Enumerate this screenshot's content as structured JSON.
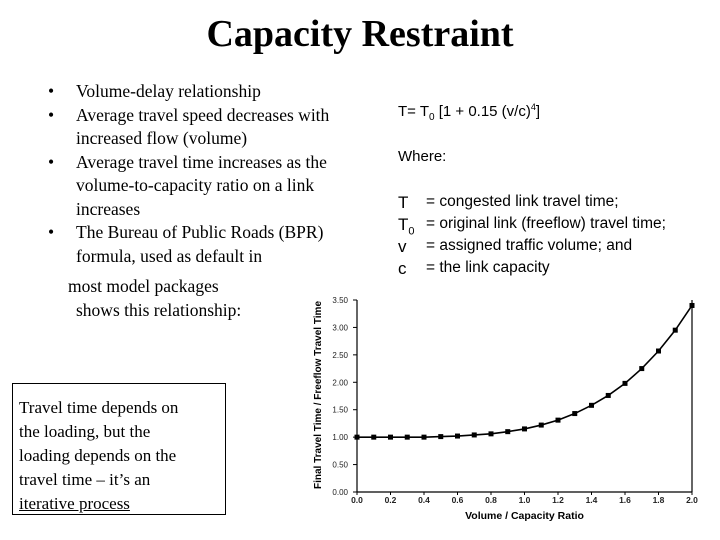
{
  "slide": {
    "title": "Capacity Restraint",
    "bullets": [
      "Volume-delay relationship",
      "Average travel speed decreases with increased flow (volume)",
      "Average travel time increases as the volume-to-capacity ratio on a link increases",
      "The Bureau of Public Roads (BPR) formula, used as default in"
    ],
    "bullet_tail_1": "most model packages",
    "bullet_tail_2": "shows this relationship:",
    "box_line_1": "Travel time depends on",
    "box_line_2": "the loading, but the",
    "box_line_3": "loading depends on the",
    "box_line_4": "travel time – it’s an",
    "box_line_5": "iterative process"
  },
  "formula": {
    "lhs": "T= T",
    "sub": "0",
    "body": " [1 + 0.15 (v/c)",
    "exp": "4",
    "close": "]",
    "where": "Where:",
    "defs": [
      {
        "sym": "T",
        "sub": "",
        "text": "= congested link travel time;"
      },
      {
        "sym": "T",
        "sub": "0",
        "text": "= original link (freeflow) travel time;"
      },
      {
        "sym": "v",
        "sub": "",
        "text": "= assigned traffic volume; and"
      },
      {
        "sym": "c",
        "sub": "",
        "text": "= the link capacity"
      }
    ]
  },
  "chart_data": {
    "type": "line",
    "xlabel": "Volume / Capacity Ratio",
    "ylabel": "Final Travel Time / Freeflow Travel Time",
    "xlim": [
      0,
      2.0
    ],
    "ylim": [
      0,
      3.5
    ],
    "xticks": [
      "0.0",
      "0.2",
      "0.4",
      "0.6",
      "0.8",
      "1.0",
      "1.2",
      "1.4",
      "1.6",
      "1.8",
      "2.0"
    ],
    "yticks": [
      "0.00",
      "0.50",
      "1.00",
      "1.50",
      "2.00",
      "2.50",
      "3.00",
      "3.50"
    ],
    "grid": false,
    "series": [
      {
        "x": [
          0.0,
          0.1,
          0.2,
          0.3,
          0.4,
          0.5,
          0.6,
          0.7,
          0.8,
          0.9,
          1.0,
          1.1,
          1.2,
          1.3,
          1.4,
          1.5,
          1.6,
          1.7,
          1.8,
          1.9,
          2.0
        ],
        "y": [
          1.0,
          1.0,
          1.0,
          1.0,
          1.0,
          1.01,
          1.02,
          1.04,
          1.06,
          1.1,
          1.15,
          1.22,
          1.31,
          1.43,
          1.58,
          1.76,
          1.98,
          2.25,
          2.57,
          2.95,
          3.4
        ]
      }
    ]
  }
}
